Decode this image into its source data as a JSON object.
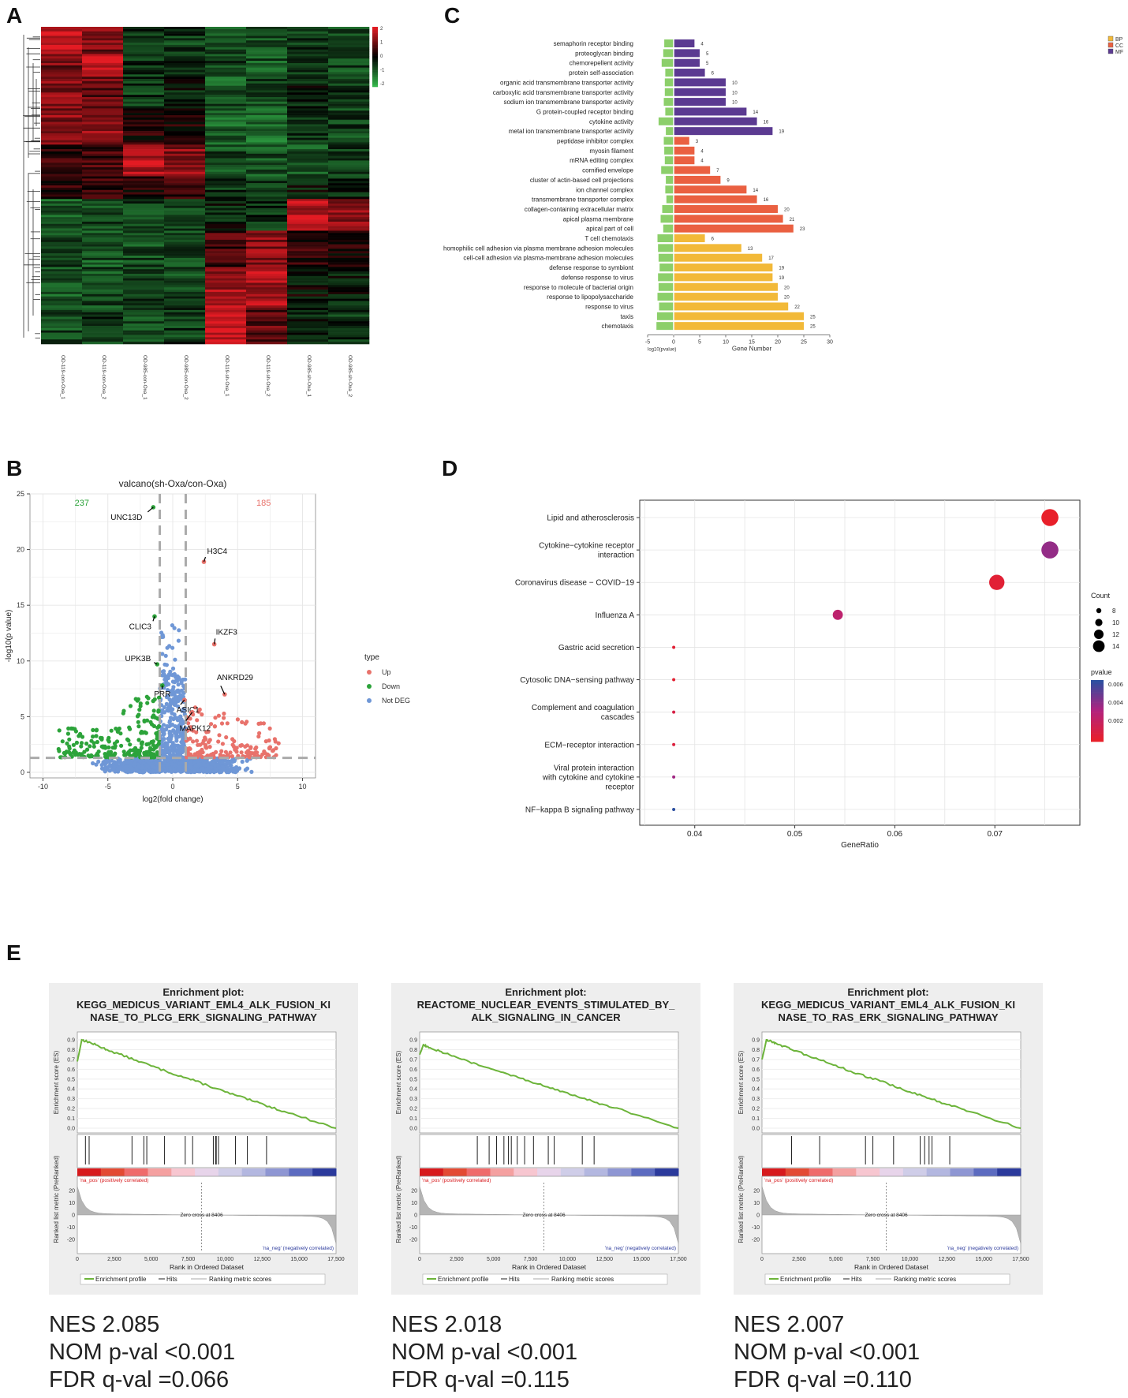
{
  "panel_labels": {
    "a": "A",
    "b": "B",
    "c": "C",
    "d": "D",
    "e": "E"
  },
  "colors": {
    "bp": "#f2b938",
    "cc": "#ea6041",
    "mf": "#5b3a91",
    "neg": "#8ccf6a",
    "up": "#e8726b",
    "down": "#2ca33a",
    "notdeg": "#6f97d6",
    "gsea_line": "#6cb43a"
  },
  "chart_data": [
    {
      "id": "heatmap",
      "type": "heatmap",
      "samples": [
        "OD-119-con-Oxa_1",
        "OD-119-con-Oxa_2",
        "OD-985-con-Oxa_1",
        "OD-985-con-Oxa_2",
        "OD-119-sh-Oxa_1",
        "OD-119-sh-Oxa_2",
        "OD-985-sh-Oxa_1",
        "OD-985-sh-Oxa_2"
      ],
      "colorbar_ticks": [
        "2",
        "1",
        "0",
        "-1",
        "-2"
      ],
      "color_low": "#33b54a",
      "color_mid": "#000000",
      "color_high": "#e31b23"
    },
    {
      "id": "go",
      "type": "bar",
      "categories": [
        "semaphorin receptor binding",
        "proteoglycan binding",
        "chemorepellent activity",
        "protein self-association",
        "organic acid transmembrane transporter activity",
        "carboxylic acid transmembrane transporter activity",
        "sodium ion transmembrane transporter activity",
        "G protein-coupled receptor binding",
        "cytokine activity",
        "metal ion transmembrane transporter activity",
        "peptidase inhibitor complex",
        "myosin filament",
        "mRNA editing complex",
        "cornified envelope",
        "cluster of actin-based cell projections",
        "ion channel complex",
        "transmembrane transporter complex",
        "collagen-containing extracellular matrix",
        "apical plasma membrane",
        "apical part of cell",
        "T cell chemotaxis",
        "homophilic cell adhesion via plasma membrane adhesion molecules",
        "cell-cell adhesion via plasma-membrane adhesion molecules",
        "defense response to symbiont",
        "defense response to virus",
        "response to molecule of bacterial origin",
        "response to lipopolysaccharide",
        "response to virus",
        "taxis",
        "chemotaxis"
      ],
      "groups": [
        "MF",
        "MF",
        "MF",
        "MF",
        "MF",
        "MF",
        "MF",
        "MF",
        "MF",
        "MF",
        "CC",
        "CC",
        "CC",
        "CC",
        "CC",
        "CC",
        "CC",
        "CC",
        "CC",
        "CC",
        "BP",
        "BP",
        "BP",
        "BP",
        "BP",
        "BP",
        "BP",
        "BP",
        "BP",
        "BP"
      ],
      "gene_number": [
        4,
        5,
        5,
        6,
        10,
        10,
        10,
        14,
        16,
        19,
        3,
        4,
        4,
        7,
        9,
        14,
        16,
        20,
        21,
        23,
        6,
        13,
        17,
        19,
        19,
        20,
        20,
        22,
        25,
        25
      ],
      "neg_log10_pvalue": [
        -1.8,
        -2.0,
        -2.3,
        -1.6,
        -1.7,
        -1.7,
        -1.9,
        -1.6,
        -2.9,
        -1.5,
        -1.9,
        -1.8,
        -1.7,
        -2.4,
        -1.5,
        -1.6,
        -1.4,
        -2.2,
        -2.5,
        -2.0,
        -3.1,
        -3.0,
        -2.9,
        -2.7,
        -3.0,
        -2.9,
        -3.1,
        -2.8,
        -3.2,
        -3.3
      ],
      "legend": [
        "BP",
        "CC",
        "MF"
      ],
      "xticks": [
        "-5",
        "0",
        "5",
        "10",
        "15",
        "20",
        "25",
        "30"
      ],
      "xlabel_left": "log10(pvalue)",
      "xlabel": "Gene Number",
      "xlim": [
        -5,
        30
      ]
    },
    {
      "id": "volcano",
      "type": "scatter",
      "title": "valcano(sh-Oxa/con-Oxa)",
      "xlabel": "log2(fold change)",
      "ylabel": "-log10(p value)",
      "xlim": [
        -11,
        11
      ],
      "ylim": [
        -0.5,
        25
      ],
      "xticks": [
        "-10",
        "-5",
        "0",
        "5",
        "10"
      ],
      "yticks": [
        "0",
        "5",
        "10",
        "15",
        "20",
        "25"
      ],
      "down_count": "237",
      "up_count": "185",
      "legend_title": "type",
      "legend": [
        "Up",
        "Down",
        "Not DEG"
      ],
      "labeled_genes": [
        {
          "name": "UNC13D",
          "x": -1.5,
          "y": 23.8
        },
        {
          "name": "H3C4",
          "x": 2.4,
          "y": 18.9
        },
        {
          "name": "CLIC3",
          "x": -1.4,
          "y": 14.0
        },
        {
          "name": "IKZF3",
          "x": 3.2,
          "y": 11.5
        },
        {
          "name": "UPK3B",
          "x": -1.2,
          "y": 9.7
        },
        {
          "name": "ANKRD29",
          "x": 4.0,
          "y": 7.0
        },
        {
          "name": "PRR",
          "x": -0.8,
          "y": 7.8
        },
        {
          "name": "ASIC1",
          "x": 0.9,
          "y": 6.5
        },
        {
          "name": "MAPK12",
          "x": 1.5,
          "y": 5.4
        }
      ],
      "thresholds": {
        "log2fc": 1,
        "neg_log10_p": 1.3
      }
    },
    {
      "id": "kegg",
      "type": "scatter",
      "pathways": [
        "Lipid and atherosclerosis",
        "Cytokine−cytokine receptor interaction",
        "Coronavirus disease − COVID−19",
        "Influenza A",
        "Gastric acid secretion",
        "Cytosolic DNA−sensing pathway",
        "Complement and coagulation cascades",
        "ECM−receptor interaction",
        "Viral protein interaction with cytokine and cytokine receptor",
        "NF−kappa B signaling pathway"
      ],
      "gene_ratio": [
        0.0755,
        0.0755,
        0.0702,
        0.0543,
        0.0379,
        0.0379,
        0.0379,
        0.0379,
        0.0379,
        0.0379
      ],
      "count": [
        15,
        15,
        14,
        11,
        7,
        7,
        7,
        7,
        7,
        7
      ],
      "pvalue": [
        0.0008,
        0.0045,
        0.0012,
        0.0032,
        0.0012,
        0.0011,
        0.0018,
        0.0015,
        0.0042,
        0.0068
      ],
      "xlabel": "GeneRatio",
      "xticks": [
        "0.04",
        "0.05",
        "0.06",
        "0.07"
      ],
      "xlim": [
        0.0345,
        0.0785
      ],
      "size_legend_title": "Count",
      "size_legend": [
        "8",
        "10",
        "12",
        "14"
      ],
      "color_legend_title": "pvalue",
      "color_legend": [
        "0.006",
        "0.004",
        "0.002"
      ]
    },
    {
      "id": "gsea",
      "type": "line",
      "plots": [
        {
          "title_lines": [
            "Enrichment plot:",
            "KEGG_MEDICUS_VARIANT_EML4_ALK_FUSION_KI",
            "NASE_TO_PLCG_ERK_SIGNALING_PATHWAY"
          ],
          "rank": [
            0,
            300,
            900,
            2000,
            4000,
            6000,
            8000,
            10000,
            12000,
            14000,
            17500
          ],
          "es": [
            0.68,
            0.9,
            0.87,
            0.8,
            0.69,
            0.58,
            0.48,
            0.37,
            0.27,
            0.17,
            0.0
          ],
          "hits": [
            550,
            800,
            3700,
            4500,
            4700,
            5900,
            7300,
            7800,
            9200,
            9350,
            9400,
            9550,
            10700,
            11500,
            12800
          ],
          "nes": "NES 2.085",
          "nom": "NOM p-val <0.001",
          "fdr": "FDR q-val =0.066"
        },
        {
          "title_lines": [
            "Enrichment plot:",
            "REACTOME_NUCLEAR_EVENTS_STIMULATED_BY_",
            "ALK_SIGNALING_IN_CANCER"
          ],
          "rank": [
            0,
            250,
            700,
            2000,
            4000,
            6000,
            8000,
            10000,
            12000,
            14000,
            17500
          ],
          "es": [
            0.75,
            0.85,
            0.82,
            0.75,
            0.64,
            0.55,
            0.45,
            0.36,
            0.26,
            0.17,
            0.0
          ],
          "hits": [
            3900,
            4700,
            5200,
            5700,
            6000,
            6200,
            6600,
            7100,
            7700,
            8700,
            9100,
            11000,
            11800
          ],
          "nes": "NES 2.018",
          "nom": "NOM p-val <0.001",
          "fdr": "FDR q-val =0.115"
        },
        {
          "title_lines": [
            "Enrichment plot:",
            "KEGG_MEDICUS_VARIANT_EML4_ALK_FUSION_KI",
            "NASE_TO_RAS_ERK_SIGNALING_PATHWAY"
          ],
          "rank": [
            0,
            300,
            900,
            2000,
            4000,
            6000,
            8000,
            10000,
            12000,
            14000,
            17500
          ],
          "es": [
            0.7,
            0.9,
            0.87,
            0.8,
            0.69,
            0.58,
            0.48,
            0.37,
            0.27,
            0.17,
            0.0
          ],
          "hits": [
            2000,
            3900,
            7000,
            7500,
            8900,
            10700,
            11000,
            11300,
            11500,
            12700
          ],
          "nes": "NES 2.007",
          "nom": "NOM p-val <0.001",
          "fdr": "FDR q-val =0.110"
        }
      ],
      "es_axis_label": "Enrichment score (ES)",
      "es_ticks": [
        "0.0",
        "0.1",
        "0.2",
        "0.3",
        "0.4",
        "0.5",
        "0.6",
        "0.7",
        "0.8",
        "0.9"
      ],
      "metric_axis_label": "Ranked list metric (PreRanked)",
      "metric_ticks": [
        "20",
        "10",
        "0",
        "-10",
        "-20"
      ],
      "rank_ticks": [
        "0",
        "2,500",
        "5,000",
        "7,500",
        "10,000",
        "12,500",
        "15,000",
        "17,500"
      ],
      "rank_label": "Rank in Ordered Dataset",
      "zero_cross": "Zero cross at 8406",
      "na_pos": "'na_pos' (positively correlated)",
      "na_neg": "'na_neg' (negatively correlated)",
      "legend": [
        "Enrichment profile",
        "Hits",
        "Ranking metric scores"
      ]
    }
  ]
}
